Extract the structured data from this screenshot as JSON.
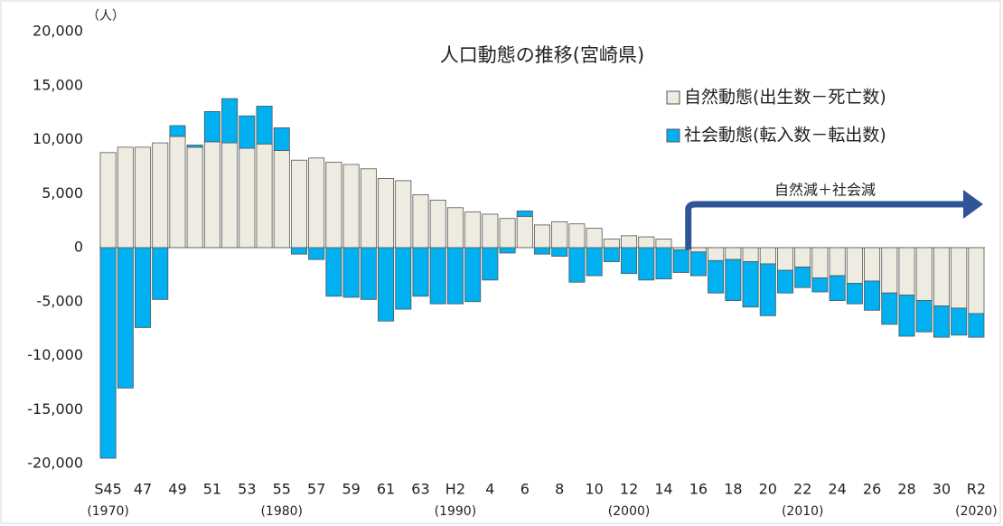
{
  "chart_data": {
    "type": "bar",
    "stacked": true,
    "title": "人口動態の推移(宮崎県)",
    "y_unit": "（人）",
    "annotation": "自然減＋社会減",
    "categories": [
      "S45",
      null,
      "47",
      null,
      "49",
      null,
      "51",
      null,
      "53",
      null,
      "55",
      null,
      "57",
      null,
      "59",
      null,
      "61",
      null,
      "63",
      null,
      "H2",
      null,
      "4",
      null,
      "6",
      null,
      "8",
      null,
      "10",
      null,
      "12",
      null,
      "14",
      null,
      "16",
      null,
      "18",
      null,
      "20",
      null,
      "22",
      null,
      "24",
      null,
      "26",
      null,
      "28",
      null,
      "30",
      null,
      "R2"
    ],
    "year_labels": [
      "(1970)",
      null,
      null,
      null,
      null,
      null,
      null,
      null,
      null,
      null,
      "(1980)",
      null,
      null,
      null,
      null,
      null,
      null,
      null,
      null,
      null,
      "(1990)",
      null,
      null,
      null,
      null,
      null,
      null,
      null,
      null,
      null,
      "(2000)",
      null,
      null,
      null,
      null,
      null,
      null,
      null,
      null,
      null,
      "(2010)",
      null,
      null,
      null,
      null,
      null,
      null,
      null,
      null,
      null,
      "(2020)"
    ],
    "series": [
      {
        "name": "自然動態(出生数－死亡数)",
        "color": "#eeece1",
        "values": [
          8800,
          9300,
          9300,
          9700,
          10300,
          9300,
          9800,
          9700,
          9200,
          9600,
          9000,
          8100,
          8300,
          7900,
          7700,
          7300,
          6400,
          6200,
          4900,
          4400,
          3700,
          3300,
          3100,
          2700,
          2900,
          2100,
          2400,
          2200,
          1800,
          800,
          1100,
          1000,
          800,
          -200,
          -400,
          -1200,
          -1100,
          -1300,
          -1500,
          -2100,
          -1800,
          -2800,
          -2600,
          -3300,
          -3100,
          -4200,
          -4400,
          -4900,
          -5400,
          -5600,
          -6100
        ]
      },
      {
        "name": "社会動態(転入数－転出数)",
        "color": "#00b0f0",
        "values": [
          -19500,
          -13000,
          -7400,
          -4800,
          1000,
          200,
          2800,
          4100,
          3000,
          3500,
          2100,
          -600,
          -1100,
          -4500,
          -4600,
          -4800,
          -6800,
          -5700,
          -4500,
          -5200,
          -5200,
          -5000,
          -3000,
          -500,
          500,
          -600,
          -800,
          -3200,
          -2600,
          -1300,
          -2400,
          -3000,
          -2900,
          -2100,
          -2200,
          -3000,
          -3800,
          -4200,
          -4800,
          -2100,
          -1900,
          -1300,
          -2300,
          -1900,
          -2700,
          -2900,
          -3800,
          -2900,
          -2900,
          -2500,
          -2200
        ]
      }
    ],
    "ylim": [
      -20000,
      20000
    ],
    "yticks": [
      {
        "value": 20000,
        "label": "20,000"
      },
      {
        "value": 15000,
        "label": "15,000"
      },
      {
        "value": 10000,
        "label": "10,000"
      },
      {
        "value": 5000,
        "label": "5,000"
      },
      0,
      {
        "value": -5000,
        "label": "-5,000"
      },
      {
        "value": -10000,
        "label": "-10,000"
      },
      {
        "value": -15000,
        "label": "-15,000"
      },
      {
        "value": -20000,
        "label": "-20,000"
      }
    ],
    "legend": "upper right"
  }
}
